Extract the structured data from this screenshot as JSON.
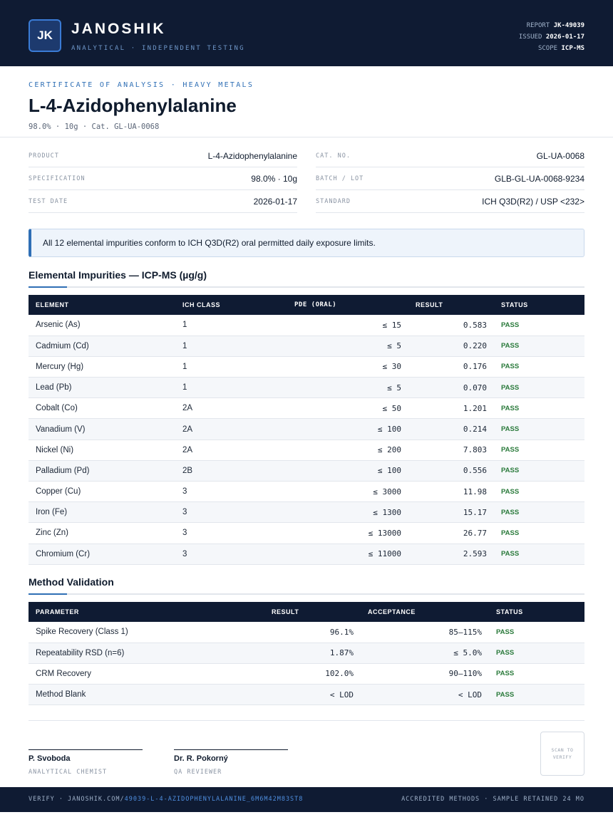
{
  "header": {
    "logo_text": "JK",
    "brand_name": "JANOSHIK",
    "brand_tagline": "ANALYTICAL · INDEPENDENT TESTING",
    "report_label": "REPORT",
    "report_value": "JK-49039",
    "issued_label": "ISSUED",
    "issued_value": "2026-01-17",
    "scope_label": "SCOPE",
    "scope_value": "ICP-MS"
  },
  "title_block": {
    "label": "CERTIFICATE OF ANALYSIS · HEAVY METALS",
    "title": "L-4-Azidophenylalanine",
    "subtitle": "98.0% · 10g  ·  Cat. GL-UA-0068"
  },
  "info": {
    "left": [
      {
        "key": "PRODUCT",
        "value": "L-4-Azidophenylalanine"
      },
      {
        "key": "SPECIFICATION",
        "value": "98.0% · 10g"
      },
      {
        "key": "TEST DATE",
        "value": "2026-01-17"
      }
    ],
    "right": [
      {
        "key": "CAT. NO.",
        "value": "GL-UA-0068"
      },
      {
        "key": "BATCH / LOT",
        "value": "GLB-GL-UA-0068-9234"
      },
      {
        "key": "STANDARD",
        "value": "ICH Q3D(R2) / USP <232>"
      }
    ]
  },
  "banner": {
    "text": "All 12 elemental impurities conform to ICH Q3D(R2) oral permitted daily exposure limits."
  },
  "impurities": {
    "title": "Elemental Impurities — ICP-MS (µg/g)",
    "headers": [
      "ELEMENT",
      "ICH CLASS",
      "PDE (ORAL)",
      "RESULT",
      "STATUS"
    ],
    "rows": [
      [
        "Arsenic (As)",
        "1",
        "≤ 15",
        "0.583",
        "PASS"
      ],
      [
        "Cadmium (Cd)",
        "1",
        "≤ 5",
        "0.220",
        "PASS"
      ],
      [
        "Mercury (Hg)",
        "1",
        "≤ 30",
        "0.176",
        "PASS"
      ],
      [
        "Lead (Pb)",
        "1",
        "≤ 5",
        "0.070",
        "PASS"
      ],
      [
        "Cobalt (Co)",
        "2A",
        "≤ 50",
        "1.201",
        "PASS"
      ],
      [
        "Vanadium (V)",
        "2A",
        "≤ 100",
        "0.214",
        "PASS"
      ],
      [
        "Nickel (Ni)",
        "2A",
        "≤ 200",
        "7.803",
        "PASS"
      ],
      [
        "Palladium (Pd)",
        "2B",
        "≤ 100",
        "0.556",
        "PASS"
      ],
      [
        "Copper (Cu)",
        "3",
        "≤ 3000",
        "11.98",
        "PASS"
      ],
      [
        "Iron (Fe)",
        "3",
        "≤ 1300",
        "15.17",
        "PASS"
      ],
      [
        "Zinc (Zn)",
        "3",
        "≤ 13000",
        "26.77",
        "PASS"
      ],
      [
        "Chromium (Cr)",
        "3",
        "≤ 11000",
        "2.593",
        "PASS"
      ]
    ]
  },
  "validation": {
    "title": "Method Validation",
    "headers": [
      "PARAMETER",
      "RESULT",
      "ACCEPTANCE",
      "STATUS"
    ],
    "rows": [
      [
        "Spike Recovery (Class 1)",
        "96.1%",
        "85–115%",
        "PASS"
      ],
      [
        "Repeatability RSD (n=6)",
        "1.87%",
        "≤ 5.0%",
        "PASS"
      ],
      [
        "CRM Recovery",
        "102.0%",
        "90–110%",
        "PASS"
      ],
      [
        "Method Blank",
        "< LOD",
        "< LOD",
        "PASS"
      ]
    ]
  },
  "signatures": [
    {
      "name": "P. Svoboda",
      "role": "ANALYTICAL CHEMIST"
    },
    {
      "name": "Dr. R. Pokorný",
      "role": "QA REVIEWER"
    }
  ],
  "qr_text": "SCAN TO VERIFY",
  "footer": {
    "verify_prefix": "VERIFY · JANOSHIK.COM/",
    "verify_link": "49039-L-4-AZIDOPHENYLALANINE_6M6M42M83ST8",
    "right_text": "ACCREDITED METHODS · SAMPLE RETAINED 24 MO"
  },
  "colors": {
    "header_bg": "#0f1b33",
    "accent": "#2f6fb5",
    "pass": "#2a7a3b"
  }
}
